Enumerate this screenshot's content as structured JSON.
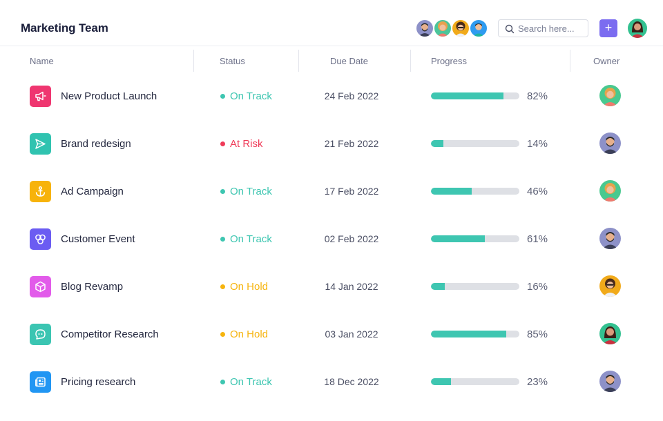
{
  "header": {
    "title": "Marketing Team",
    "search_placeholder": "Search here...",
    "add_label": "+"
  },
  "columns": {
    "name": "Name",
    "status": "Status",
    "due": "Due Date",
    "progress": "Progress",
    "owner": "Owner"
  },
  "colors": {
    "on_track": "#3ec6b1",
    "at_risk": "#ef3a58",
    "on_hold": "#f6b40e",
    "progress_fill": "#3ec6b1",
    "progress_track": "#dee0e5",
    "accent": "#7b6cf0"
  },
  "team_avatars": [
    "avatar-man-beard",
    "avatar-woman-curly",
    "avatar-woman-glasses",
    "avatar-man-blue"
  ],
  "rows": [
    {
      "name": "New Product Launch",
      "icon": "megaphone-icon",
      "icon_bg": "#ef3670",
      "status": "On Track",
      "status_color": "#3ec6b1",
      "due": "24 Feb 2022",
      "progress": 82,
      "progress_label": "82%",
      "owner": "avatar-woman-curly"
    },
    {
      "name": "Brand redesign",
      "icon": "send-icon",
      "icon_bg": "#30c3b0",
      "status": "At Risk",
      "status_color": "#ef3a58",
      "due": "21 Feb 2022",
      "progress": 14,
      "progress_label": "14%",
      "owner": "avatar-man-beard"
    },
    {
      "name": "Ad Campaign",
      "icon": "anchor-icon",
      "icon_bg": "#f7b30b",
      "status": "On Track",
      "status_color": "#3ec6b1",
      "due": "17 Feb 2022",
      "progress": 46,
      "progress_label": "46%",
      "owner": "avatar-woman-curly"
    },
    {
      "name": "Customer Event",
      "icon": "circles-icon",
      "icon_bg": "#6b5cf2",
      "status": "On Track",
      "status_color": "#3ec6b1",
      "due": "02 Feb 2022",
      "progress": 61,
      "progress_label": "61%",
      "owner": "avatar-man-beard"
    },
    {
      "name": "Blog Revamp",
      "icon": "cube-icon",
      "icon_bg": "#e25bea",
      "status": "On Hold",
      "status_color": "#f6b40e",
      "due": "14 Jan 2022",
      "progress": 16,
      "progress_label": "16%",
      "owner": "avatar-woman-glasses"
    },
    {
      "name": "Competitor Research",
      "icon": "chat-icon",
      "icon_bg": "#3bc5b2",
      "status": "On Hold",
      "status_color": "#f6b40e",
      "due": "03 Jan 2022",
      "progress": 85,
      "progress_label": "85%",
      "owner": "avatar-woman-dark"
    },
    {
      "name": "Pricing research",
      "icon": "newspaper-icon",
      "icon_bg": "#2196f3",
      "status": "On Track",
      "status_color": "#3ec6b1",
      "due": "18 Dec 2022",
      "progress": 23,
      "progress_label": "23%",
      "owner": "avatar-man-beard"
    }
  ]
}
